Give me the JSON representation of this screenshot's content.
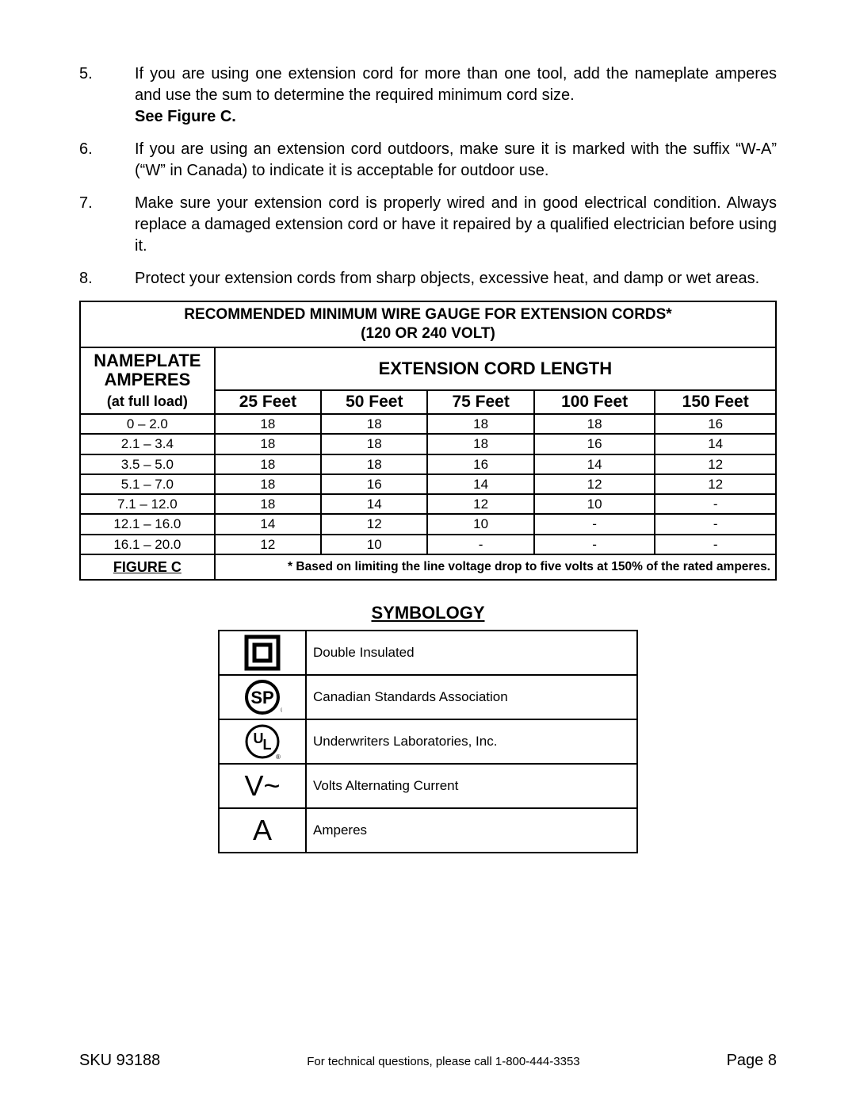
{
  "list": [
    {
      "num": "5.",
      "text": "If you are using one extension cord for more than one tool, add the nameplate amperes and use the sum to determine the required minimum cord size.",
      "bold_after": "See Figure C."
    },
    {
      "num": "6.",
      "text": "If you are using an extension cord outdoors, make sure it is marked with the suffix “W-A” (“W” in Canada) to indicate it is acceptable for outdoor use."
    },
    {
      "num": "7.",
      "text": "Make sure your extension cord is properly wired and in good electrical condition.  Always replace a damaged extension cord or have it repaired by a qualified electrician before using it."
    },
    {
      "num": "8.",
      "text": "Protect your extension cords from sharp objects, excessive heat, and damp or wet areas."
    }
  ],
  "wire_table": {
    "title_line1": "RECOMMENDED MINIMUM WIRE GAUGE FOR EXTENSION CORDS*",
    "title_line2": "(120 OR 240 VOLT)",
    "nameplate_top1": "NAMEPLATE",
    "nameplate_top2": "AMPERES",
    "nameplate_bot": "(at full load)",
    "ext_header": "EXTENSION CORD LENGTH",
    "feet": [
      "25 Feet",
      "50 Feet",
      "75 Feet",
      "100 Feet",
      "150 Feet"
    ],
    "rows": [
      [
        "0 – 2.0",
        "18",
        "18",
        "18",
        "18",
        "16"
      ],
      [
        "2.1 – 3.4",
        "18",
        "18",
        "18",
        "16",
        "14"
      ],
      [
        "3.5 – 5.0",
        "18",
        "18",
        "16",
        "14",
        "12"
      ],
      [
        "5.1 – 7.0",
        "18",
        "16",
        "14",
        "12",
        "12"
      ],
      [
        "7.1 – 12.0",
        "18",
        "14",
        "12",
        "10",
        "-"
      ],
      [
        "12.1 – 16.0",
        "14",
        "12",
        "10",
        "-",
        "-"
      ],
      [
        "16.1 – 20.0",
        "12",
        "10",
        "-",
        "-",
        "-"
      ]
    ],
    "figure_label": "FIGURE C",
    "footnote": "* Based on limiting the line voltage drop to five volts at 150% of the rated amperes."
  },
  "symbology": {
    "heading": "SYMBOLOGY",
    "rows": [
      {
        "icon": "double-insulated",
        "label": "Double Insulated"
      },
      {
        "icon": "csa",
        "label": "Canadian Standards Association"
      },
      {
        "icon": "ul",
        "label": "Underwriters Laboratories, Inc."
      },
      {
        "icon": "vac",
        "label": "Volts Alternating Current"
      },
      {
        "icon": "amp",
        "label": "Amperes"
      }
    ]
  },
  "footer": {
    "sku": "SKU 93188",
    "mid": "For technical questions, please call 1-800-444-3353",
    "page": "Page 8"
  }
}
